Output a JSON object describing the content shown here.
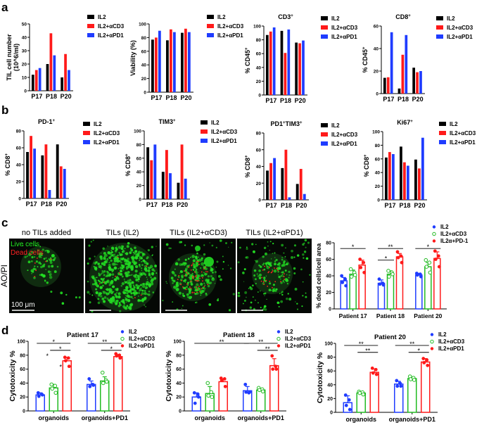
{
  "panel_labels": [
    "a",
    "b",
    "c",
    "d"
  ],
  "colors": {
    "IL2": "#000000",
    "aCD3": "#ff1a1a",
    "aPD1": "#1f3cff",
    "dot_IL2": "#1f3cff",
    "dot_aCD3": "#22bb22",
    "dot_aPD1": "#ff1a1a",
    "live": "#22dd22",
    "dead": "#ff2020"
  },
  "microscopy": {
    "row_label": "AO/PI",
    "titles": [
      "no TILs added",
      "TILs (IL2)",
      "TILs (IL2+αCD3)",
      "TILs (IL2+αPD1)"
    ],
    "live_label": "Live cells",
    "dead_label": "Dead cells",
    "scale_bar_label": "100 μm"
  },
  "chart_data": [
    {
      "id": "a1",
      "type": "bar",
      "title": "",
      "ylabel": "TIL cell number (10^6/ml)",
      "ylim": [
        0,
        50
      ],
      "yticks": [
        0,
        10,
        20,
        30,
        40,
        50
      ],
      "categories": [
        "P17",
        "P18",
        "P20"
      ],
      "series": [
        {
          "name": "IL2",
          "values": [
            12,
            20,
            10
          ]
        },
        {
          "name": "IL2+αCD3",
          "values": [
            15.5,
            43,
            27.5
          ]
        },
        {
          "name": "IL2+αPD1",
          "values": [
            17,
            26.5,
            15.5
          ]
        }
      ],
      "legend": "top-right"
    },
    {
      "id": "a2",
      "type": "bar",
      "title": "",
      "ylabel": "Viability (%)",
      "ylim": [
        0,
        100
      ],
      "yticks": [
        0,
        20,
        40,
        60,
        80,
        100
      ],
      "categories": [
        "P17",
        "P18",
        "P20"
      ],
      "series": [
        {
          "name": "IL2",
          "values": [
            77,
            76,
            87
          ]
        },
        {
          "name": "IL2+αCD3",
          "values": [
            80,
            92,
            93
          ]
        },
        {
          "name": "IL2+αPD1",
          "values": [
            90,
            88,
            88
          ]
        }
      ],
      "legend": "top-right"
    },
    {
      "id": "a3",
      "type": "bar",
      "title": "CD3+",
      "ylabel": "% CD45+",
      "ylim": [
        0,
        100
      ],
      "yticks": [
        0,
        20,
        40,
        60,
        80,
        100
      ],
      "categories": [
        "P17",
        "P18",
        "P20"
      ],
      "series": [
        {
          "name": "IL2",
          "values": [
            87,
            93,
            76
          ]
        },
        {
          "name": "IL2+αCD3",
          "values": [
            92,
            61,
            75
          ]
        },
        {
          "name": "IL2+αPD1",
          "values": [
            98,
            95,
            79
          ]
        }
      ],
      "legend": "top-right"
    },
    {
      "id": "a4",
      "type": "bar",
      "title": "CD8+",
      "ylabel": "% CD45+",
      "ylim": [
        0,
        60
      ],
      "yticks": [
        0,
        20,
        40,
        60
      ],
      "categories": [
        "P17",
        "P18",
        "P20"
      ],
      "series": [
        {
          "name": "IL2",
          "values": [
            14,
            4.5,
            23
          ]
        },
        {
          "name": "IL2+αCD3",
          "values": [
            14.5,
            34.5,
            19
          ]
        },
        {
          "name": "IL2+αPD1",
          "values": [
            54.5,
            52,
            20
          ]
        }
      ],
      "legend": "top-right"
    },
    {
      "id": "b1",
      "type": "bar",
      "title": "PD-1+",
      "ylabel": "% CD8+",
      "ylim": [
        0,
        80
      ],
      "yticks": [
        0,
        20,
        40,
        60,
        80
      ],
      "categories": [
        "P17",
        "P18",
        "P20"
      ],
      "series": [
        {
          "name": "IL2",
          "values": [
            55,
            51,
            64
          ]
        },
        {
          "name": "IL2+αCD3",
          "values": [
            74,
            64,
            38
          ]
        },
        {
          "name": "IL2+αPD1",
          "values": [
            59,
            10,
            35
          ]
        }
      ],
      "legend": "top-right"
    },
    {
      "id": "b2",
      "type": "bar",
      "title": "TIM3+",
      "ylabel": "% CD8+",
      "ylim": [
        0,
        100
      ],
      "yticks": [
        0,
        20,
        40,
        60,
        80,
        100
      ],
      "categories": [
        "P17",
        "P18",
        "P20"
      ],
      "series": [
        {
          "name": "IL2",
          "values": [
            76,
            40,
            24
          ]
        },
        {
          "name": "IL2+αCD3",
          "values": [
            57,
            72,
            80
          ]
        },
        {
          "name": "IL2+αPD1",
          "values": [
            80,
            38,
            30
          ]
        }
      ],
      "legend": "top-right"
    },
    {
      "id": "b3",
      "type": "bar",
      "title": "PD1+TIM3+",
      "ylabel": "% CD8+",
      "ylim": [
        0,
        80
      ],
      "yticks": [
        0,
        20,
        40,
        60,
        80
      ],
      "categories": [
        "P17",
        "P18",
        "P20"
      ],
      "series": [
        {
          "name": "IL2",
          "values": [
            35,
            38,
            19
          ]
        },
        {
          "name": "IL2+αCD3",
          "values": [
            44,
            60,
            37
          ]
        },
        {
          "name": "IL2+αPD1",
          "values": [
            50,
            3,
            7
          ]
        }
      ],
      "legend": "top-right"
    },
    {
      "id": "b4",
      "type": "bar",
      "title": "Ki67+",
      "ylabel": "% CD8+",
      "ylim": [
        0,
        100
      ],
      "yticks": [
        0,
        20,
        40,
        60,
        80,
        100
      ],
      "categories": [
        "P17",
        "P18",
        "P20"
      ],
      "series": [
        {
          "name": "IL2",
          "values": [
            62,
            78,
            59
          ]
        },
        {
          "name": "IL2+αCD3",
          "values": [
            70,
            55,
            46
          ]
        },
        {
          "name": "IL2+αPD1",
          "values": [
            67,
            50,
            91
          ]
        }
      ],
      "legend": "top-right"
    },
    {
      "id": "c",
      "type": "bar",
      "title": "",
      "ylabel": "% dead cells/cell area",
      "ylim": [
        0,
        80
      ],
      "yticks": [
        0,
        20,
        40,
        60,
        80
      ],
      "categories": [
        "Patient 17",
        "Patient 18",
        "Patient 20"
      ],
      "series": [
        {
          "name": "IL2",
          "values": [
            34,
            31,
            41
          ],
          "sd": [
            4,
            4,
            2
          ],
          "points": [
            [
              40,
              36,
              32,
              28
            ],
            [
              36,
              31,
              30,
              29
            ],
            [
              43,
              42,
              41,
              39
            ]
          ]
        },
        {
          "name": "IL2+αCD3",
          "values": [
            42,
            42,
            51
          ],
          "sd": [
            5,
            4,
            5
          ],
          "points": [
            [
              48,
              44,
              39,
              41
            ],
            [
              46,
              44,
              39,
              42
            ],
            [
              59,
              56,
              51,
              44
            ]
          ]
        },
        {
          "name": "IL2α+PD-1",
          "values": [
            53,
            63,
            61
          ],
          "sd": [
            6,
            4,
            8
          ],
          "points": [
            [
              60,
              56,
              50,
              44
            ],
            [
              69,
              64,
              62,
              56
            ],
            [
              70,
              64,
              60,
              51
            ]
          ]
        }
      ],
      "significance": [
        {
          "from": 0,
          "to": 2,
          "group": 0,
          "label": "*"
        },
        {
          "from": 0,
          "to": 2,
          "group": 1,
          "label": "**"
        },
        {
          "from": 0,
          "to": 1,
          "group": 1,
          "label": "*"
        },
        {
          "from": 0,
          "to": 2,
          "group": 2,
          "label": "*"
        }
      ],
      "legend": "top-right"
    },
    {
      "id": "d1",
      "type": "bar",
      "title": "Patient 17",
      "ylabel": "Cytotoxicity %",
      "ylim": [
        0,
        100
      ],
      "yticks": [
        0,
        20,
        40,
        60,
        80,
        100
      ],
      "categories": [
        "organoids",
        "organoids+PD1"
      ],
      "series": [
        {
          "name": "IL2",
          "values": [
            23,
            38
          ],
          "sd": [
            3,
            5
          ],
          "points": [
            [
              26,
              24,
              21,
              23
            ],
            [
              46,
              38,
              35,
              37
            ]
          ]
        },
        {
          "name": "IL2+αCD3",
          "values": [
            33,
            43
          ],
          "sd": [
            5,
            6
          ],
          "points": [
            [
              38,
              36,
              32,
              26
            ],
            [
              55,
              44,
              40,
              42
            ]
          ]
        },
        {
          "name": "IL2+αPD1",
          "values": [
            72,
            78
          ],
          "sd": [
            5,
            3
          ],
          "points": [
            [
              77,
              76,
              72,
              64
            ],
            [
              82,
              80,
              79,
              76
            ]
          ]
        }
      ],
      "significance": [
        {
          "group": 0,
          "from": 0,
          "to": 2,
          "label": "*"
        },
        {
          "group": 0,
          "from": 1,
          "to": 2,
          "label": "*"
        },
        {
          "group": 0,
          "from": 1,
          "to": 1,
          "label": "*"
        },
        {
          "group": 0,
          "from": 2,
          "to": 2,
          "label": "*"
        },
        {
          "group": 1,
          "from": 0,
          "to": 2,
          "label": "**"
        },
        {
          "group": 1,
          "from": 1,
          "to": 2,
          "label": "*"
        }
      ],
      "legend": "top-right"
    },
    {
      "id": "d2",
      "type": "bar",
      "title": "Patient 18",
      "ylabel": "Cytotoxicity %",
      "ylim": [
        0,
        100
      ],
      "yticks": [
        0,
        20,
        40,
        60,
        80,
        100
      ],
      "categories": [
        "organoids",
        "organoids+PD1"
      ],
      "series": [
        {
          "name": "IL2",
          "values": [
            20,
            29
          ],
          "sd": [
            6,
            6
          ],
          "points": [
            [
              26,
              24,
              11,
              20
            ],
            [
              38,
              26,
              27,
              27
            ]
          ]
        },
        {
          "name": "IL2+αCD3",
          "values": [
            25,
            30
          ],
          "sd": [
            10,
            2
          ],
          "points": [
            [
              40,
              27,
              22,
              20
            ],
            [
              33,
              31,
              30,
              28
            ]
          ]
        },
        {
          "name": "IL2+αPD1",
          "values": [
            42,
            65
          ],
          "sd": [
            4,
            10
          ],
          "points": [
            [
              47,
              46,
              44,
              35
            ],
            [
              79,
              64,
              60,
              60
            ]
          ]
        }
      ],
      "significance": [
        {
          "group": "cross",
          "from": "organoids IL2",
          "to": "organoids+PD1 IL2",
          "label": "**"
        },
        {
          "group": 1,
          "from": 0,
          "to": 2,
          "label": "**"
        },
        {
          "group": 1,
          "from": 1,
          "to": 2,
          "label": "**"
        }
      ],
      "legend": "top-right"
    },
    {
      "id": "d3",
      "type": "bar",
      "title": "Patient 20",
      "ylabel": "Cytotoxicity %",
      "ylim": [
        0,
        100
      ],
      "yticks": [
        0,
        20,
        40,
        60,
        80,
        100
      ],
      "categories": [
        "organoids",
        "organoids+PD1"
      ],
      "series": [
        {
          "name": "IL2",
          "values": [
            14,
            41
          ],
          "sd": [
            10,
            4
          ],
          "points": [
            [
              25,
              18,
              10,
              4
            ],
            [
              46,
              42,
              38,
              38
            ]
          ]
        },
        {
          "name": "IL2+αCD3",
          "values": [
            28,
            49
          ],
          "sd": [
            2,
            2
          ],
          "points": [
            [
              30,
              29,
              28,
              26
            ],
            [
              52,
              50,
              48,
              47
            ]
          ]
        },
        {
          "name": "IL2+αPD1",
          "values": [
            58,
            73
          ],
          "sd": [
            5,
            5
          ],
          "points": [
            [
              64,
              62,
              57,
              55
            ],
            [
              78,
              76,
              72,
              68
            ]
          ]
        }
      ],
      "significance": [
        {
          "group": 0,
          "from": 0,
          "to": 2,
          "label": "**"
        },
        {
          "group": 0,
          "from": 1,
          "to": 2,
          "label": "**"
        },
        {
          "group": 1,
          "from": 0,
          "to": 2,
          "label": "**"
        },
        {
          "group": 1,
          "from": 1,
          "to": 2,
          "label": "*"
        }
      ],
      "legend": "top-right"
    }
  ]
}
